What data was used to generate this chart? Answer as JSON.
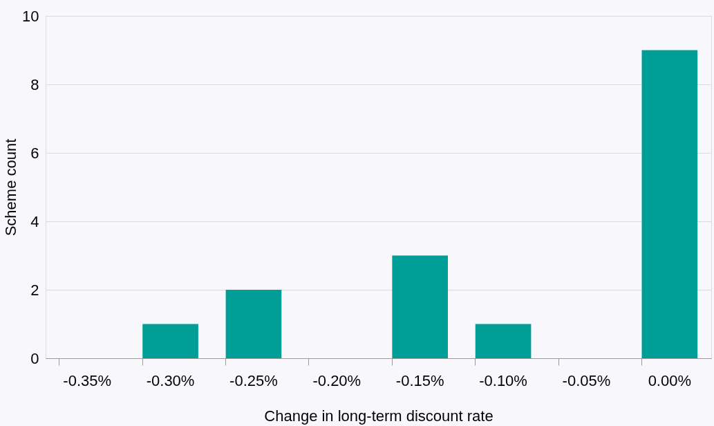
{
  "chart_data": {
    "type": "bar",
    "xlabel": "Change in long-term discount rate",
    "ylabel": "Scheme count",
    "categories": [
      "-0.35%",
      "-0.30%",
      "-0.25%",
      "-0.20%",
      "-0.15%",
      "-0.10%",
      "-0.05%",
      "0.00%"
    ],
    "values": [
      0,
      1,
      2,
      0,
      3,
      1,
      0,
      9
    ],
    "color": "#009e96",
    "ylim": [
      0,
      10
    ],
    "yticks": [
      0,
      2,
      4,
      6,
      8,
      10
    ],
    "grid": "y"
  }
}
